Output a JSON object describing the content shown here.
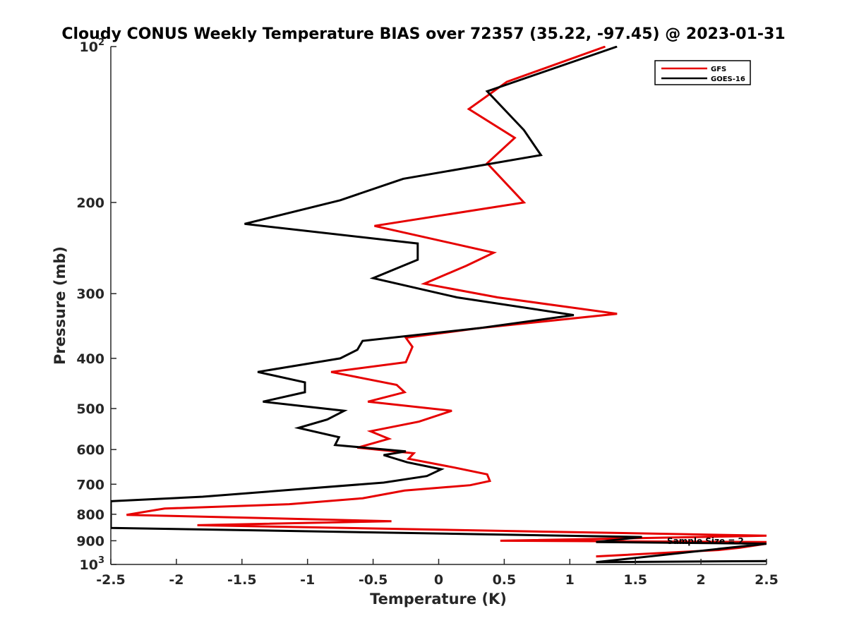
{
  "chart_data": {
    "type": "line",
    "title": "Cloudy CONUS Weekly Temperature BIAS over 72357 (35.22, -97.45) @ 2023-01-31",
    "xlabel": "Temperature (K)",
    "ylabel": "Pressure (mb)",
    "xlim": [
      -2.5,
      2.5
    ],
    "ylim": [
      100,
      1000
    ],
    "y_scale": "log",
    "y_direction": "reversed",
    "grid": false,
    "legend_position": "top-right",
    "x_ticks": [
      -2.5,
      -2,
      -1.5,
      -1,
      -0.5,
      0,
      0.5,
      1,
      1.5,
      2,
      2.5
    ],
    "x_tick_labels": [
      "-2.5",
      "-2",
      "-1.5",
      "-1",
      "-0.5",
      "0",
      "0.5",
      "1",
      "1.5",
      "2",
      "2.5"
    ],
    "y_ticks": [
      200,
      300,
      400,
      500,
      600,
      700,
      800,
      900
    ],
    "y_tick_labels": [
      "200",
      "300",
      "400",
      "500",
      "600",
      "700",
      "800",
      "900"
    ],
    "y_tick_top": {
      "base": "10",
      "exp": "2"
    },
    "y_tick_bottom": {
      "base": "10",
      "exp": "3"
    },
    "annotation": "Sample Size = 2",
    "series": [
      {
        "name": "GFS",
        "color": "#e60000",
        "points": [
          [
            1.27,
            100
          ],
          [
            0.52,
            117
          ],
          [
            0.23,
            132
          ],
          [
            0.58,
            150
          ],
          [
            0.37,
            168
          ],
          [
            0.65,
            200
          ],
          [
            -0.49,
            222
          ],
          [
            0.42,
            250
          ],
          [
            0.21,
            265
          ],
          [
            -0.11,
            287
          ],
          [
            0.45,
            305
          ],
          [
            1.36,
            328
          ],
          [
            0.3,
            350
          ],
          [
            -0.25,
            365
          ],
          [
            -0.2,
            380
          ],
          [
            -0.25,
            407
          ],
          [
            -0.82,
            425
          ],
          [
            -0.32,
            450
          ],
          [
            -0.26,
            465
          ],
          [
            -0.54,
            485
          ],
          [
            0.1,
            505
          ],
          [
            -0.15,
            530
          ],
          [
            -0.52,
            553
          ],
          [
            -0.38,
            572
          ],
          [
            -0.62,
            595
          ],
          [
            -0.19,
            610
          ],
          [
            -0.23,
            625
          ],
          [
            0.12,
            650
          ],
          [
            0.37,
            670
          ],
          [
            0.39,
            690
          ],
          [
            0.24,
            703
          ],
          [
            -0.26,
            720
          ],
          [
            -0.58,
            745
          ],
          [
            -1.14,
            765
          ],
          [
            -2.09,
            780
          ],
          [
            -2.38,
            802
          ],
          [
            -0.36,
            825
          ],
          [
            -1.84,
            840
          ],
          [
            2.5,
            880
          ],
          [
            0.47,
            900
          ],
          [
            2.5,
            905
          ],
          [
            2.5,
            912
          ],
          [
            2.3,
            928
          ],
          [
            2.13,
            938
          ],
          [
            1.2,
            965
          ]
        ]
      },
      {
        "name": "GOES-16",
        "color": "#000000",
        "points": [
          [
            1.36,
            100
          ],
          [
            0.37,
            122
          ],
          [
            0.65,
            145
          ],
          [
            0.78,
            162
          ],
          [
            -0.27,
            180
          ],
          [
            -0.75,
            198
          ],
          [
            -1.48,
            220
          ],
          [
            -0.16,
            240
          ],
          [
            -0.16,
            258
          ],
          [
            -0.5,
            280
          ],
          [
            0.14,
            305
          ],
          [
            1.03,
            330
          ],
          [
            0.3,
            350
          ],
          [
            -0.58,
            370
          ],
          [
            -0.62,
            385
          ],
          [
            -0.75,
            400
          ],
          [
            -1.38,
            425
          ],
          [
            -1.02,
            445
          ],
          [
            -1.02,
            465
          ],
          [
            -1.34,
            485
          ],
          [
            -0.72,
            505
          ],
          [
            -0.85,
            525
          ],
          [
            -1.07,
            545
          ],
          [
            -0.76,
            568
          ],
          [
            -0.79,
            588
          ],
          [
            -0.25,
            605
          ],
          [
            -0.42,
            615
          ],
          [
            -0.24,
            635
          ],
          [
            0.02,
            655
          ],
          [
            -0.09,
            675
          ],
          [
            -0.42,
            695
          ],
          [
            -1.8,
            740
          ],
          [
            -2.5,
            755
          ],
          [
            -2.5,
            850
          ],
          [
            1.55,
            885
          ],
          [
            1.2,
            905
          ],
          [
            2.5,
            912
          ],
          [
            1.2,
            990
          ],
          [
            2.5,
            985
          ]
        ]
      }
    ]
  }
}
